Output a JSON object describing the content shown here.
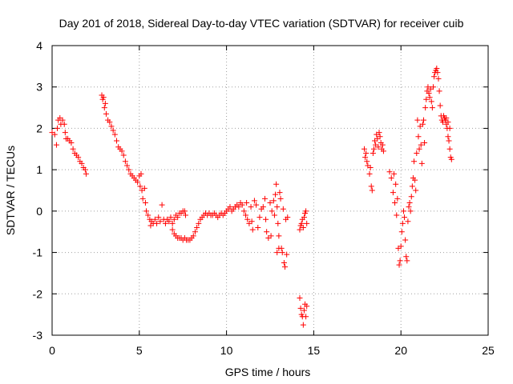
{
  "chart_data": {
    "type": "scatter",
    "title": "Day 201 of 2018, Sidereal Day-to-day VTEC variation (SDTVAR) for receiver cuib",
    "xlabel": "GPS time / hours",
    "ylabel": "SDTVAR / TECUs",
    "xlim": [
      0,
      25
    ],
    "ylim": [
      -3,
      4
    ],
    "xticks": [
      0,
      5,
      10,
      15,
      20,
      25
    ],
    "yticks": [
      -3,
      -2,
      -1,
      0,
      1,
      2,
      3,
      4
    ],
    "xtick_labels": [
      "0",
      "5",
      "10",
      "15",
      "20",
      "25"
    ],
    "ytick_labels": [
      "-3",
      "-2",
      "-1",
      "0",
      "1",
      "2",
      "3",
      "4"
    ],
    "grid": true,
    "marker": "+",
    "color": "#ff0000",
    "series": [
      {
        "name": "SDTVAR",
        "points": [
          [
            0.0,
            1.9
          ],
          [
            0.15,
            1.85
          ],
          [
            0.25,
            1.6
          ],
          [
            0.3,
            2.0
          ],
          [
            0.35,
            2.2
          ],
          [
            0.45,
            2.25
          ],
          [
            0.5,
            2.1
          ],
          [
            0.6,
            2.2
          ],
          [
            0.7,
            2.1
          ],
          [
            0.75,
            1.9
          ],
          [
            0.8,
            1.75
          ],
          [
            0.9,
            1.75
          ],
          [
            1.0,
            1.7
          ],
          [
            1.1,
            1.65
          ],
          [
            1.2,
            1.5
          ],
          [
            1.3,
            1.4
          ],
          [
            1.4,
            1.35
          ],
          [
            1.5,
            1.3
          ],
          [
            1.6,
            1.2
          ],
          [
            1.7,
            1.15
          ],
          [
            1.8,
            1.05
          ],
          [
            1.9,
            1.0
          ],
          [
            1.95,
            0.9
          ],
          [
            2.85,
            2.8
          ],
          [
            2.9,
            2.7
          ],
          [
            2.95,
            2.75
          ],
          [
            3.0,
            2.5
          ],
          [
            3.05,
            2.6
          ],
          [
            3.1,
            2.35
          ],
          [
            3.2,
            2.2
          ],
          [
            3.3,
            2.15
          ],
          [
            3.4,
            2.05
          ],
          [
            3.5,
            1.95
          ],
          [
            3.6,
            1.85
          ],
          [
            3.7,
            1.7
          ],
          [
            3.8,
            1.55
          ],
          [
            3.9,
            1.5
          ],
          [
            4.0,
            1.45
          ],
          [
            4.1,
            1.35
          ],
          [
            4.2,
            1.2
          ],
          [
            4.3,
            1.1
          ],
          [
            4.4,
            1.0
          ],
          [
            4.5,
            0.9
          ],
          [
            4.6,
            0.85
          ],
          [
            4.7,
            0.8
          ],
          [
            4.8,
            0.75
          ],
          [
            4.9,
            0.7
          ],
          [
            5.0,
            0.85
          ],
          [
            5.05,
            0.6
          ],
          [
            5.1,
            0.9
          ],
          [
            5.15,
            0.5
          ],
          [
            5.2,
            0.3
          ],
          [
            5.3,
            0.55
          ],
          [
            5.35,
            0.2
          ],
          [
            5.4,
            0.0
          ],
          [
            5.5,
            -0.1
          ],
          [
            5.6,
            -0.2
          ],
          [
            5.65,
            -0.35
          ],
          [
            5.7,
            -0.25
          ],
          [
            5.8,
            -0.3
          ],
          [
            5.9,
            -0.2
          ],
          [
            6.0,
            -0.3
          ],
          [
            6.1,
            -0.15
          ],
          [
            6.2,
            -0.25
          ],
          [
            6.3,
            0.15
          ],
          [
            6.4,
            -0.2
          ],
          [
            6.5,
            -0.3
          ],
          [
            6.6,
            -0.2
          ],
          [
            6.7,
            -0.25
          ],
          [
            6.8,
            -0.15
          ],
          [
            6.9,
            -0.3
          ],
          [
            7.0,
            -0.2
          ],
          [
            7.1,
            -0.1
          ],
          [
            7.2,
            -0.15
          ],
          [
            7.3,
            -0.05
          ],
          [
            7.4,
            -0.05
          ],
          [
            7.5,
            0.0
          ],
          [
            7.6,
            0.0
          ],
          [
            7.65,
            -0.1
          ],
          [
            6.9,
            -0.45
          ],
          [
            7.0,
            -0.55
          ],
          [
            7.1,
            -0.6
          ],
          [
            7.2,
            -0.65
          ],
          [
            7.3,
            -0.65
          ],
          [
            7.4,
            -0.65
          ],
          [
            7.5,
            -0.7
          ],
          [
            7.6,
            -0.65
          ],
          [
            7.7,
            -0.7
          ],
          [
            7.8,
            -0.7
          ],
          [
            7.9,
            -0.7
          ],
          [
            8.0,
            -0.65
          ],
          [
            8.1,
            -0.6
          ],
          [
            8.2,
            -0.5
          ],
          [
            8.3,
            -0.4
          ],
          [
            8.4,
            -0.3
          ],
          [
            8.5,
            -0.2
          ],
          [
            8.6,
            -0.15
          ],
          [
            8.7,
            -0.1
          ],
          [
            8.8,
            -0.05
          ],
          [
            8.9,
            -0.1
          ],
          [
            9.0,
            -0.05
          ],
          [
            9.1,
            -0.1
          ],
          [
            9.2,
            -0.1
          ],
          [
            9.3,
            -0.05
          ],
          [
            9.4,
            -0.1
          ],
          [
            9.5,
            -0.15
          ],
          [
            9.6,
            -0.1
          ],
          [
            9.7,
            -0.05
          ],
          [
            9.8,
            -0.1
          ],
          [
            9.9,
            -0.05
          ],
          [
            10.0,
            0.0
          ],
          [
            10.1,
            0.05
          ],
          [
            10.2,
            0.1
          ],
          [
            10.3,
            0.0
          ],
          [
            10.4,
            0.05
          ],
          [
            10.5,
            0.1
          ],
          [
            10.6,
            0.15
          ],
          [
            10.7,
            0.1
          ],
          [
            10.8,
            0.2
          ],
          [
            10.9,
            0.15
          ],
          [
            11.0,
            0.0
          ],
          [
            11.1,
            -0.1
          ],
          [
            11.15,
            0.2
          ],
          [
            11.2,
            -0.2
          ],
          [
            11.3,
            -0.3
          ],
          [
            11.4,
            0.1
          ],
          [
            11.45,
            -0.25
          ],
          [
            11.5,
            -0.45
          ],
          [
            11.6,
            0.25
          ],
          [
            11.7,
            0.15
          ],
          [
            11.8,
            -0.4
          ],
          [
            11.9,
            -0.15
          ],
          [
            12.0,
            0.05
          ],
          [
            12.1,
            0.1
          ],
          [
            12.2,
            0.3
          ],
          [
            12.25,
            -0.2
          ],
          [
            12.3,
            -0.5
          ],
          [
            12.4,
            -0.65
          ],
          [
            12.5,
            0.2
          ],
          [
            12.55,
            -0.6
          ],
          [
            12.6,
            0.0
          ],
          [
            12.7,
            0.25
          ],
          [
            12.75,
            -0.1
          ],
          [
            12.8,
            0.4
          ],
          [
            12.85,
            0.65
          ],
          [
            12.9,
            0.1
          ],
          [
            12.95,
            -0.3
          ],
          [
            13.0,
            -0.6
          ],
          [
            13.05,
            0.45
          ],
          [
            13.1,
            0.3
          ],
          [
            13.15,
            -0.9
          ],
          [
            13.2,
            -1.0
          ],
          [
            13.25,
            0.05
          ],
          [
            13.3,
            -1.25
          ],
          [
            13.35,
            -1.35
          ],
          [
            13.4,
            -0.2
          ],
          [
            13.45,
            -1.05
          ],
          [
            13.5,
            -0.15
          ],
          [
            12.9,
            -1.0
          ],
          [
            13.0,
            -0.9
          ],
          [
            14.2,
            -0.45
          ],
          [
            14.25,
            -0.35
          ],
          [
            14.3,
            -0.3
          ],
          [
            14.35,
            -0.2
          ],
          [
            14.4,
            -0.4
          ],
          [
            14.45,
            -0.15
          ],
          [
            14.5,
            -0.05
          ],
          [
            14.55,
            0.0
          ],
          [
            14.6,
            -0.3
          ],
          [
            14.2,
            -2.1
          ],
          [
            14.25,
            -2.35
          ],
          [
            14.3,
            -2.5
          ],
          [
            14.35,
            -2.55
          ],
          [
            14.4,
            -2.75
          ],
          [
            14.45,
            -2.4
          ],
          [
            14.5,
            -2.25
          ],
          [
            14.55,
            -2.55
          ],
          [
            14.6,
            -2.3
          ],
          [
            17.9,
            1.5
          ],
          [
            17.95,
            1.3
          ],
          [
            18.0,
            1.4
          ],
          [
            18.05,
            1.2
          ],
          [
            18.1,
            1.1
          ],
          [
            18.2,
            0.9
          ],
          [
            18.25,
            1.05
          ],
          [
            18.3,
            0.6
          ],
          [
            18.35,
            0.5
          ],
          [
            18.4,
            1.4
          ],
          [
            18.45,
            1.5
          ],
          [
            18.5,
            1.7
          ],
          [
            18.55,
            1.6
          ],
          [
            18.6,
            1.85
          ],
          [
            18.65,
            1.75
          ],
          [
            18.7,
            1.55
          ],
          [
            18.75,
            1.9
          ],
          [
            18.8,
            1.8
          ],
          [
            18.85,
            1.65
          ],
          [
            18.9,
            1.5
          ],
          [
            18.95,
            1.6
          ],
          [
            19.0,
            1.45
          ],
          [
            19.35,
            0.95
          ],
          [
            19.45,
            0.8
          ],
          [
            19.55,
            0.45
          ],
          [
            19.6,
            0.9
          ],
          [
            19.65,
            0.2
          ],
          [
            19.7,
            0.65
          ],
          [
            19.75,
            -0.1
          ],
          [
            19.8,
            0.3
          ],
          [
            19.85,
            -0.9
          ],
          [
            19.9,
            -1.3
          ],
          [
            19.95,
            -1.2
          ],
          [
            20.0,
            -0.85
          ],
          [
            20.05,
            -0.5
          ],
          [
            20.1,
            -0.3
          ],
          [
            20.15,
            0.0
          ],
          [
            20.2,
            -0.15
          ],
          [
            20.25,
            -0.7
          ],
          [
            20.3,
            -1.1
          ],
          [
            20.35,
            -1.2
          ],
          [
            20.4,
            -0.25
          ],
          [
            20.45,
            0.1
          ],
          [
            20.5,
            0.2
          ],
          [
            20.55,
            0.0
          ],
          [
            20.6,
            0.35
          ],
          [
            20.65,
            0.6
          ],
          [
            20.7,
            0.8
          ],
          [
            20.75,
            1.2
          ],
          [
            20.8,
            0.75
          ],
          [
            20.85,
            0.5
          ],
          [
            20.9,
            1.4
          ],
          [
            20.95,
            2.2
          ],
          [
            21.0,
            1.8
          ],
          [
            21.05,
            1.5
          ],
          [
            21.1,
            2.05
          ],
          [
            21.15,
            1.6
          ],
          [
            21.2,
            1.15
          ],
          [
            21.25,
            2.1
          ],
          [
            21.3,
            2.2
          ],
          [
            21.35,
            1.65
          ],
          [
            21.4,
            2.5
          ],
          [
            21.45,
            2.7
          ],
          [
            21.5,
            2.9
          ],
          [
            21.55,
            3.0
          ],
          [
            21.6,
            2.85
          ],
          [
            21.65,
            2.75
          ],
          [
            21.7,
            2.95
          ],
          [
            21.75,
            2.65
          ],
          [
            21.8,
            2.5
          ],
          [
            21.85,
            3.0
          ],
          [
            21.9,
            3.25
          ],
          [
            21.95,
            3.35
          ],
          [
            22.0,
            3.4
          ],
          [
            22.05,
            3.45
          ],
          [
            22.1,
            3.35
          ],
          [
            22.15,
            3.2
          ],
          [
            22.2,
            2.9
          ],
          [
            22.25,
            2.55
          ],
          [
            22.3,
            2.3
          ],
          [
            22.35,
            2.2
          ],
          [
            22.4,
            2.15
          ],
          [
            22.45,
            2.3
          ],
          [
            22.5,
            2.25
          ],
          [
            22.55,
            2.2
          ],
          [
            22.6,
            2.1
          ],
          [
            22.65,
            2.0
          ],
          [
            22.7,
            1.8
          ],
          [
            22.75,
            1.7
          ],
          [
            22.8,
            1.5
          ],
          [
            22.85,
            1.3
          ],
          [
            22.9,
            1.25
          ],
          [
            22.6,
            2.25
          ],
          [
            22.7,
            2.15
          ],
          [
            22.8,
            2.0
          ]
        ]
      }
    ]
  }
}
